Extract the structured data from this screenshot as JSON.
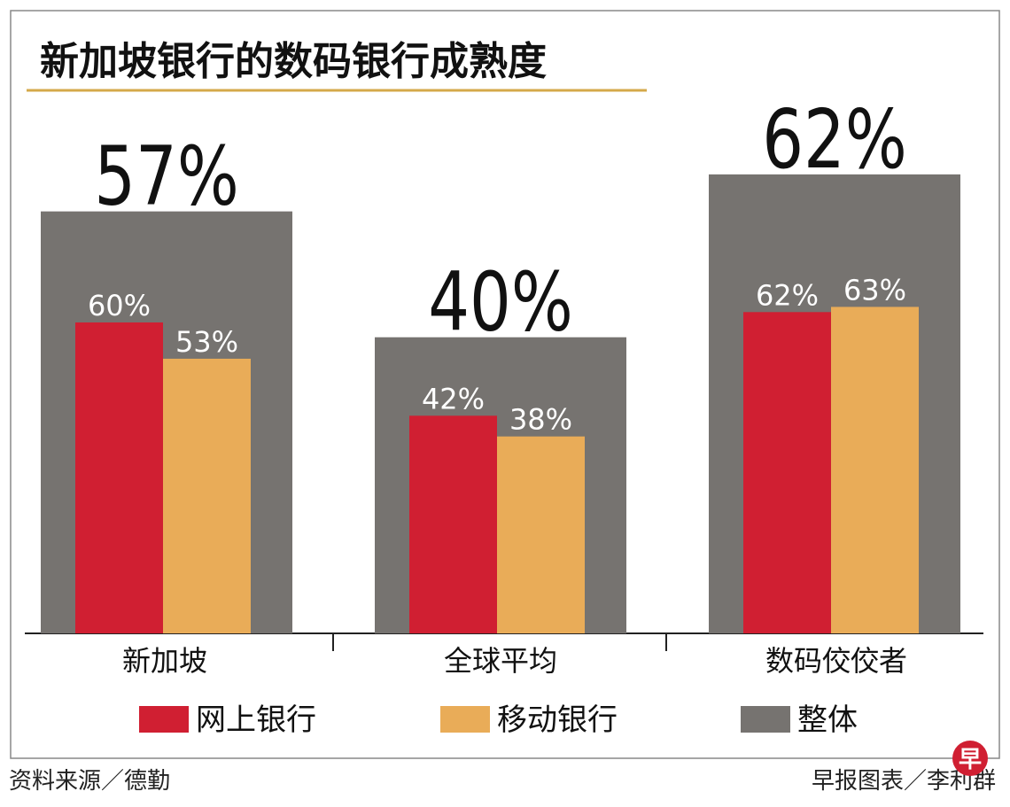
{
  "chart_data": {
    "type": "bar",
    "title": "新加坡银行的数码银行成熟度",
    "categories": [
      "新加坡",
      "全球平均",
      "数码佼佼者"
    ],
    "series": [
      {
        "name": "网上银行",
        "color": "#d01f32",
        "values": [
          60,
          42,
          62
        ],
        "value_labels": [
          "60%",
          "42%",
          "62%"
        ]
      },
      {
        "name": "移动银行",
        "color": "#e9ac58",
        "values": [
          53,
          38,
          63
        ],
        "value_labels": [
          "53%",
          "38%",
          "63%"
        ]
      },
      {
        "name": "整体",
        "color": "#767370",
        "axis": "y2",
        "values": [
          57,
          40,
          62
        ],
        "value_labels": [
          "57%",
          "40%",
          "62%"
        ]
      }
    ],
    "ylim": [
      0,
      100
    ],
    "y2lim": [
      0,
      70
    ],
    "source": "资料来源／德勤",
    "credit": "早报图表／李利群",
    "logo": "早"
  }
}
